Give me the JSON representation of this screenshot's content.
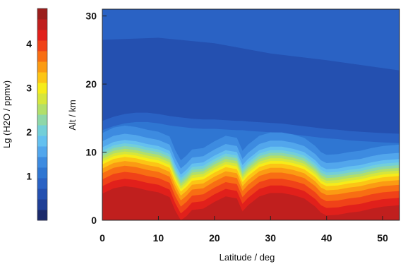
{
  "chart_data": {
    "type": "heatmap",
    "xlabel": "Latitude / deg",
    "ylabel": "Alt / km",
    "colorbar_label": "Lg (H2O / ppmv)",
    "xlim": [
      0,
      53
    ],
    "ylim": [
      0,
      31
    ],
    "x_ticks": [
      0,
      10,
      20,
      30,
      40,
      50
    ],
    "y_ticks": [
      0,
      10,
      20,
      30
    ],
    "colorbar_range": [
      0.0,
      4.8
    ],
    "colorbar_ticks": [
      1,
      2,
      3,
      4
    ],
    "colorbar_colors": [
      "#1b2a6b",
      "#1f3f96",
      "#2450b0",
      "#2a62c4",
      "#2f76d2",
      "#3d8be0",
      "#52a6ec",
      "#64c0ef",
      "#73cfd8",
      "#8ed7a8",
      "#b2df6a",
      "#d6e63c",
      "#f6ec1a",
      "#fcc515",
      "#fb9b13",
      "#f86e13",
      "#f04218",
      "#e1201b",
      "#c01f1e",
      "#9b1e1c"
    ],
    "profile_x": [
      0,
      2,
      4,
      6,
      8,
      10,
      12,
      13,
      14,
      15,
      16,
      18,
      20,
      22,
      24,
      25,
      26,
      28,
      30,
      32,
      34,
      36,
      38,
      39,
      40,
      42,
      44,
      46,
      48,
      50,
      53
    ],
    "transition_altitude_km": [
      9.8,
      10.6,
      10.9,
      10.7,
      10.3,
      10.0,
      9.3,
      7.3,
      5.8,
      6.5,
      7.4,
      7.6,
      8.6,
      9.4,
      9.1,
      7.2,
      8.1,
      9.4,
      9.9,
      9.9,
      9.6,
      9.1,
      7.9,
      7.0,
      6.6,
      6.7,
      7.0,
      7.2,
      7.6,
      7.9,
      8.1
    ],
    "tropopause_km": [
      14.6,
      15.2,
      15.6,
      15.8,
      15.8,
      15.6,
      15.3,
      15.2,
      15.1,
      15.0,
      14.9,
      14.8,
      14.8,
      14.7,
      14.6,
      14.6,
      14.5,
      14.4,
      14.3,
      14.2,
      14.0,
      13.8,
      13.6,
      13.5,
      13.4,
      13.3,
      13.1,
      13.0,
      12.9,
      12.8,
      12.7
    ]
  }
}
